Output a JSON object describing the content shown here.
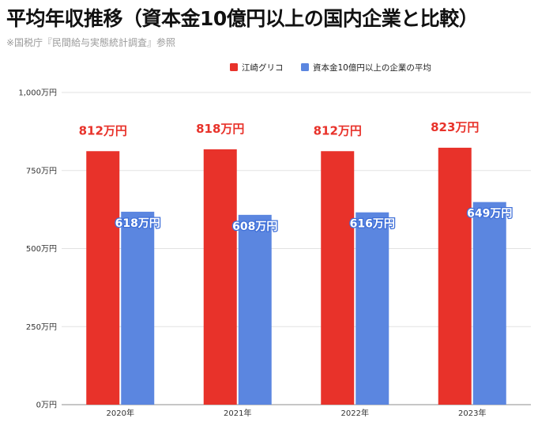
{
  "header": {
    "title": "平均年収推移（資本金10億円以上の国内企業と比較）",
    "subtitle": "※国税庁『民間給与実態統計調査』参照"
  },
  "chart_data": {
    "type": "bar",
    "categories": [
      "2020年",
      "2021年",
      "2022年",
      "2023年"
    ],
    "series": [
      {
        "name": "江崎グリコ",
        "values": [
          812,
          818,
          812,
          823
        ],
        "color": "#e8322a",
        "labels": [
          "812万円",
          "818万円",
          "812万円",
          "823万円"
        ]
      },
      {
        "name": "資本金10億円以上の企業の平均",
        "values": [
          618,
          608,
          616,
          649
        ],
        "color": "#5b86e0",
        "labels": [
          "618万円",
          "608万円",
          "616万円",
          "649万円"
        ]
      }
    ],
    "ylim": [
      0,
      1000
    ],
    "yticks": [
      0,
      250,
      500,
      750,
      1000
    ],
    "ytick_labels": [
      "0万円",
      "250万円",
      "500万円",
      "750万円",
      "1,000万円"
    ],
    "grid": true,
    "legend": "top"
  }
}
